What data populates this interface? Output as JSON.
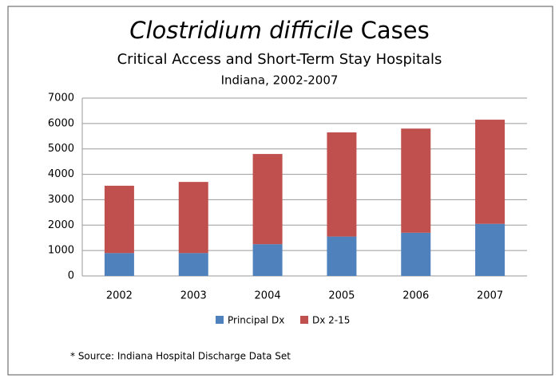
{
  "chart_data": {
    "type": "stacked_bar",
    "title_italic": "Clostridium difficile",
    "title": "Cases",
    "subtitle": "Critical Access and Short-Term Stay Hospitals",
    "subtitle2": "Indiana, 2002-2007",
    "categories": [
      "2002",
      "2003",
      "2004",
      "2005",
      "2006",
      "2007"
    ],
    "series": [
      {
        "name": "Principal Dx",
        "color": "#4f81bd",
        "values": [
          900,
          900,
          1250,
          1550,
          1700,
          2050
        ]
      },
      {
        "name": "Dx 2-15",
        "color": "#c0504d",
        "values": [
          2650,
          2800,
          3550,
          4100,
          4100,
          4100
        ]
      }
    ],
    "ylim": [
      0,
      7000
    ],
    "yticks": [
      0,
      1000,
      2000,
      3000,
      4000,
      5000,
      6000,
      7000
    ],
    "grid": true,
    "legend": "bottom",
    "note": "* Source: Indiana Hospital Discharge Data Set"
  }
}
